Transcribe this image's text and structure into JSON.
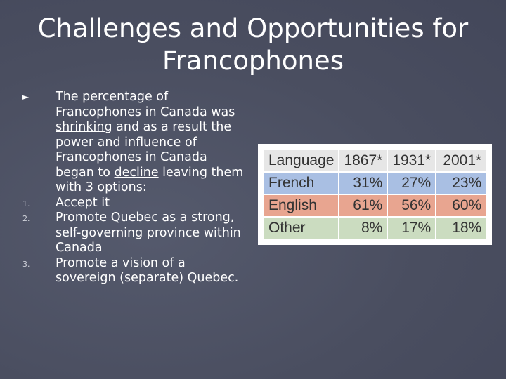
{
  "slide": {
    "title": "Challenges and Opportunities for Francophones"
  },
  "bullets": {
    "intro": {
      "before1": "The percentage of Francophones in Canada was ",
      "u1": "shrinking",
      "mid": " and as a result the power and influence of Francophones in Canada began to ",
      "u2": "decline",
      "after": " leaving them with 3 options:"
    },
    "options": [
      {
        "marker": "1.",
        "text": "Accept it"
      },
      {
        "marker": "2.",
        "text": "Promote Quebec as a strong, self-governing province within Canada"
      },
      {
        "marker": "3.",
        "text": "Promote a vision of a sovereign (separate) Quebec."
      }
    ]
  },
  "table": {
    "headers": [
      "Language",
      "1867*",
      "1931*",
      "2001*"
    ],
    "rows": [
      {
        "cells": [
          "French",
          "31%",
          "27%",
          "23%"
        ],
        "color": "#a9bfe3"
      },
      {
        "cells": [
          "English",
          "61%",
          "56%",
          "60%"
        ],
        "color": "#e8a590"
      },
      {
        "cells": [
          "Other",
          "8%",
          "17%",
          "18%"
        ],
        "color": "#cbdcc0"
      }
    ],
    "header_color": "#e6e6e6"
  }
}
